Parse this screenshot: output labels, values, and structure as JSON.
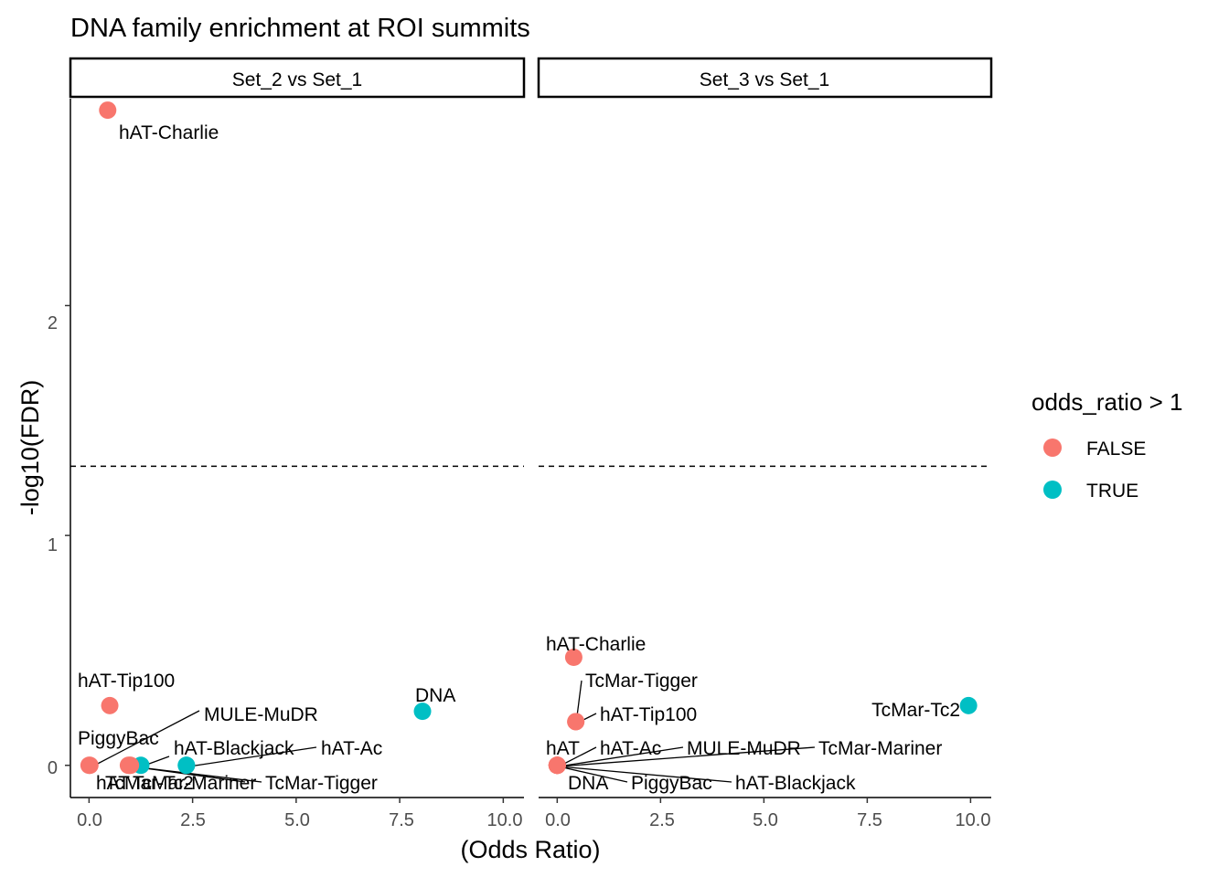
{
  "chart_data": {
    "type": "scatter",
    "title": "DNA family enrichment at ROI summits",
    "xlabel": "(Odds Ratio)",
    "ylabel": "-log10(FDR)",
    "xlim": [
      -0.45,
      10.5
    ],
    "ylim": [
      -0.14,
      2.9
    ],
    "x_ticks": [
      0,
      2.5,
      5,
      7.5,
      10
    ],
    "x_tick_labels": [
      "0.0",
      "2.5",
      "5.0",
      "7.5",
      "10.0"
    ],
    "y_ticks": [
      0,
      1,
      2
    ],
    "y_tick_labels": [
      "0",
      "1",
      "2"
    ],
    "threshold_y": 1.301,
    "legend": {
      "title": "odds_ratio > 1",
      "position": "right",
      "entries": [
        {
          "label": "FALSE",
          "color": "#F8766D"
        },
        {
          "label": "TRUE",
          "color": "#00BFC4"
        }
      ]
    },
    "panels": [
      {
        "strip": "Set_2 vs Set_1",
        "points": [
          {
            "label": "hAT-Charlie",
            "x": 0.45,
            "y": 2.85,
            "group": "FALSE"
          },
          {
            "label": "hAT-Tip100",
            "x": 0.5,
            "y": 0.26,
            "group": "FALSE"
          },
          {
            "label": "PiggyBac",
            "x": 0.02,
            "y": 0.0,
            "group": "FALSE"
          },
          {
            "label": "hAT",
            "x": 0.95,
            "y": 0.0,
            "group": "FALSE"
          },
          {
            "label": "TcMar-Tc2",
            "x": 1.25,
            "y": 0.0,
            "group": "TRUE"
          },
          {
            "label": "hAT-Blackjack",
            "x": 2.35,
            "y": 0.0,
            "group": "TRUE"
          },
          {
            "label": "DNA",
            "x": 8.05,
            "y": 0.235,
            "group": "TRUE"
          },
          {
            "label": "MULE-MuDR",
            "x": 0.0,
            "y": 0.0,
            "group": "FALSE"
          },
          {
            "label": "hAT-Ac",
            "x": 2.35,
            "y": 0.0,
            "group": "TRUE"
          },
          {
            "label": "TcMar-Mariner",
            "x": 1.0,
            "y": 0.0,
            "group": "FALSE"
          },
          {
            "label": "TcMar-Tigger",
            "x": 0.98,
            "y": 0.0,
            "group": "FALSE"
          }
        ]
      },
      {
        "strip": "Set_3 vs Set_1",
        "points": [
          {
            "label": "hAT-Charlie",
            "x": 0.4,
            "y": 0.47,
            "group": "FALSE"
          },
          {
            "label": "TcMar-Tigger",
            "x": 0.45,
            "y": 0.19,
            "group": "FALSE"
          },
          {
            "label": "hAT-Tip100",
            "x": 0.45,
            "y": 0.19,
            "group": "FALSE"
          },
          {
            "label": "TcMar-Tc2",
            "x": 9.95,
            "y": 0.26,
            "group": "TRUE"
          },
          {
            "label": "hAT",
            "x": 0.0,
            "y": 0.0,
            "group": "FALSE"
          },
          {
            "label": "hAT-Ac",
            "x": 0.0,
            "y": 0.0,
            "group": "FALSE"
          },
          {
            "label": "MULE-MuDR",
            "x": 0.0,
            "y": 0.0,
            "group": "FALSE"
          },
          {
            "label": "TcMar-Mariner",
            "x": 0.0,
            "y": 0.0,
            "group": "FALSE"
          },
          {
            "label": "DNA",
            "x": 0.0,
            "y": 0.0,
            "group": "FALSE"
          },
          {
            "label": "PiggyBac",
            "x": 0.0,
            "y": 0.0,
            "group": "FALSE"
          },
          {
            "label": "hAT-Blackjack",
            "x": 0.0,
            "y": 0.0,
            "group": "FALSE"
          }
        ]
      }
    ]
  }
}
